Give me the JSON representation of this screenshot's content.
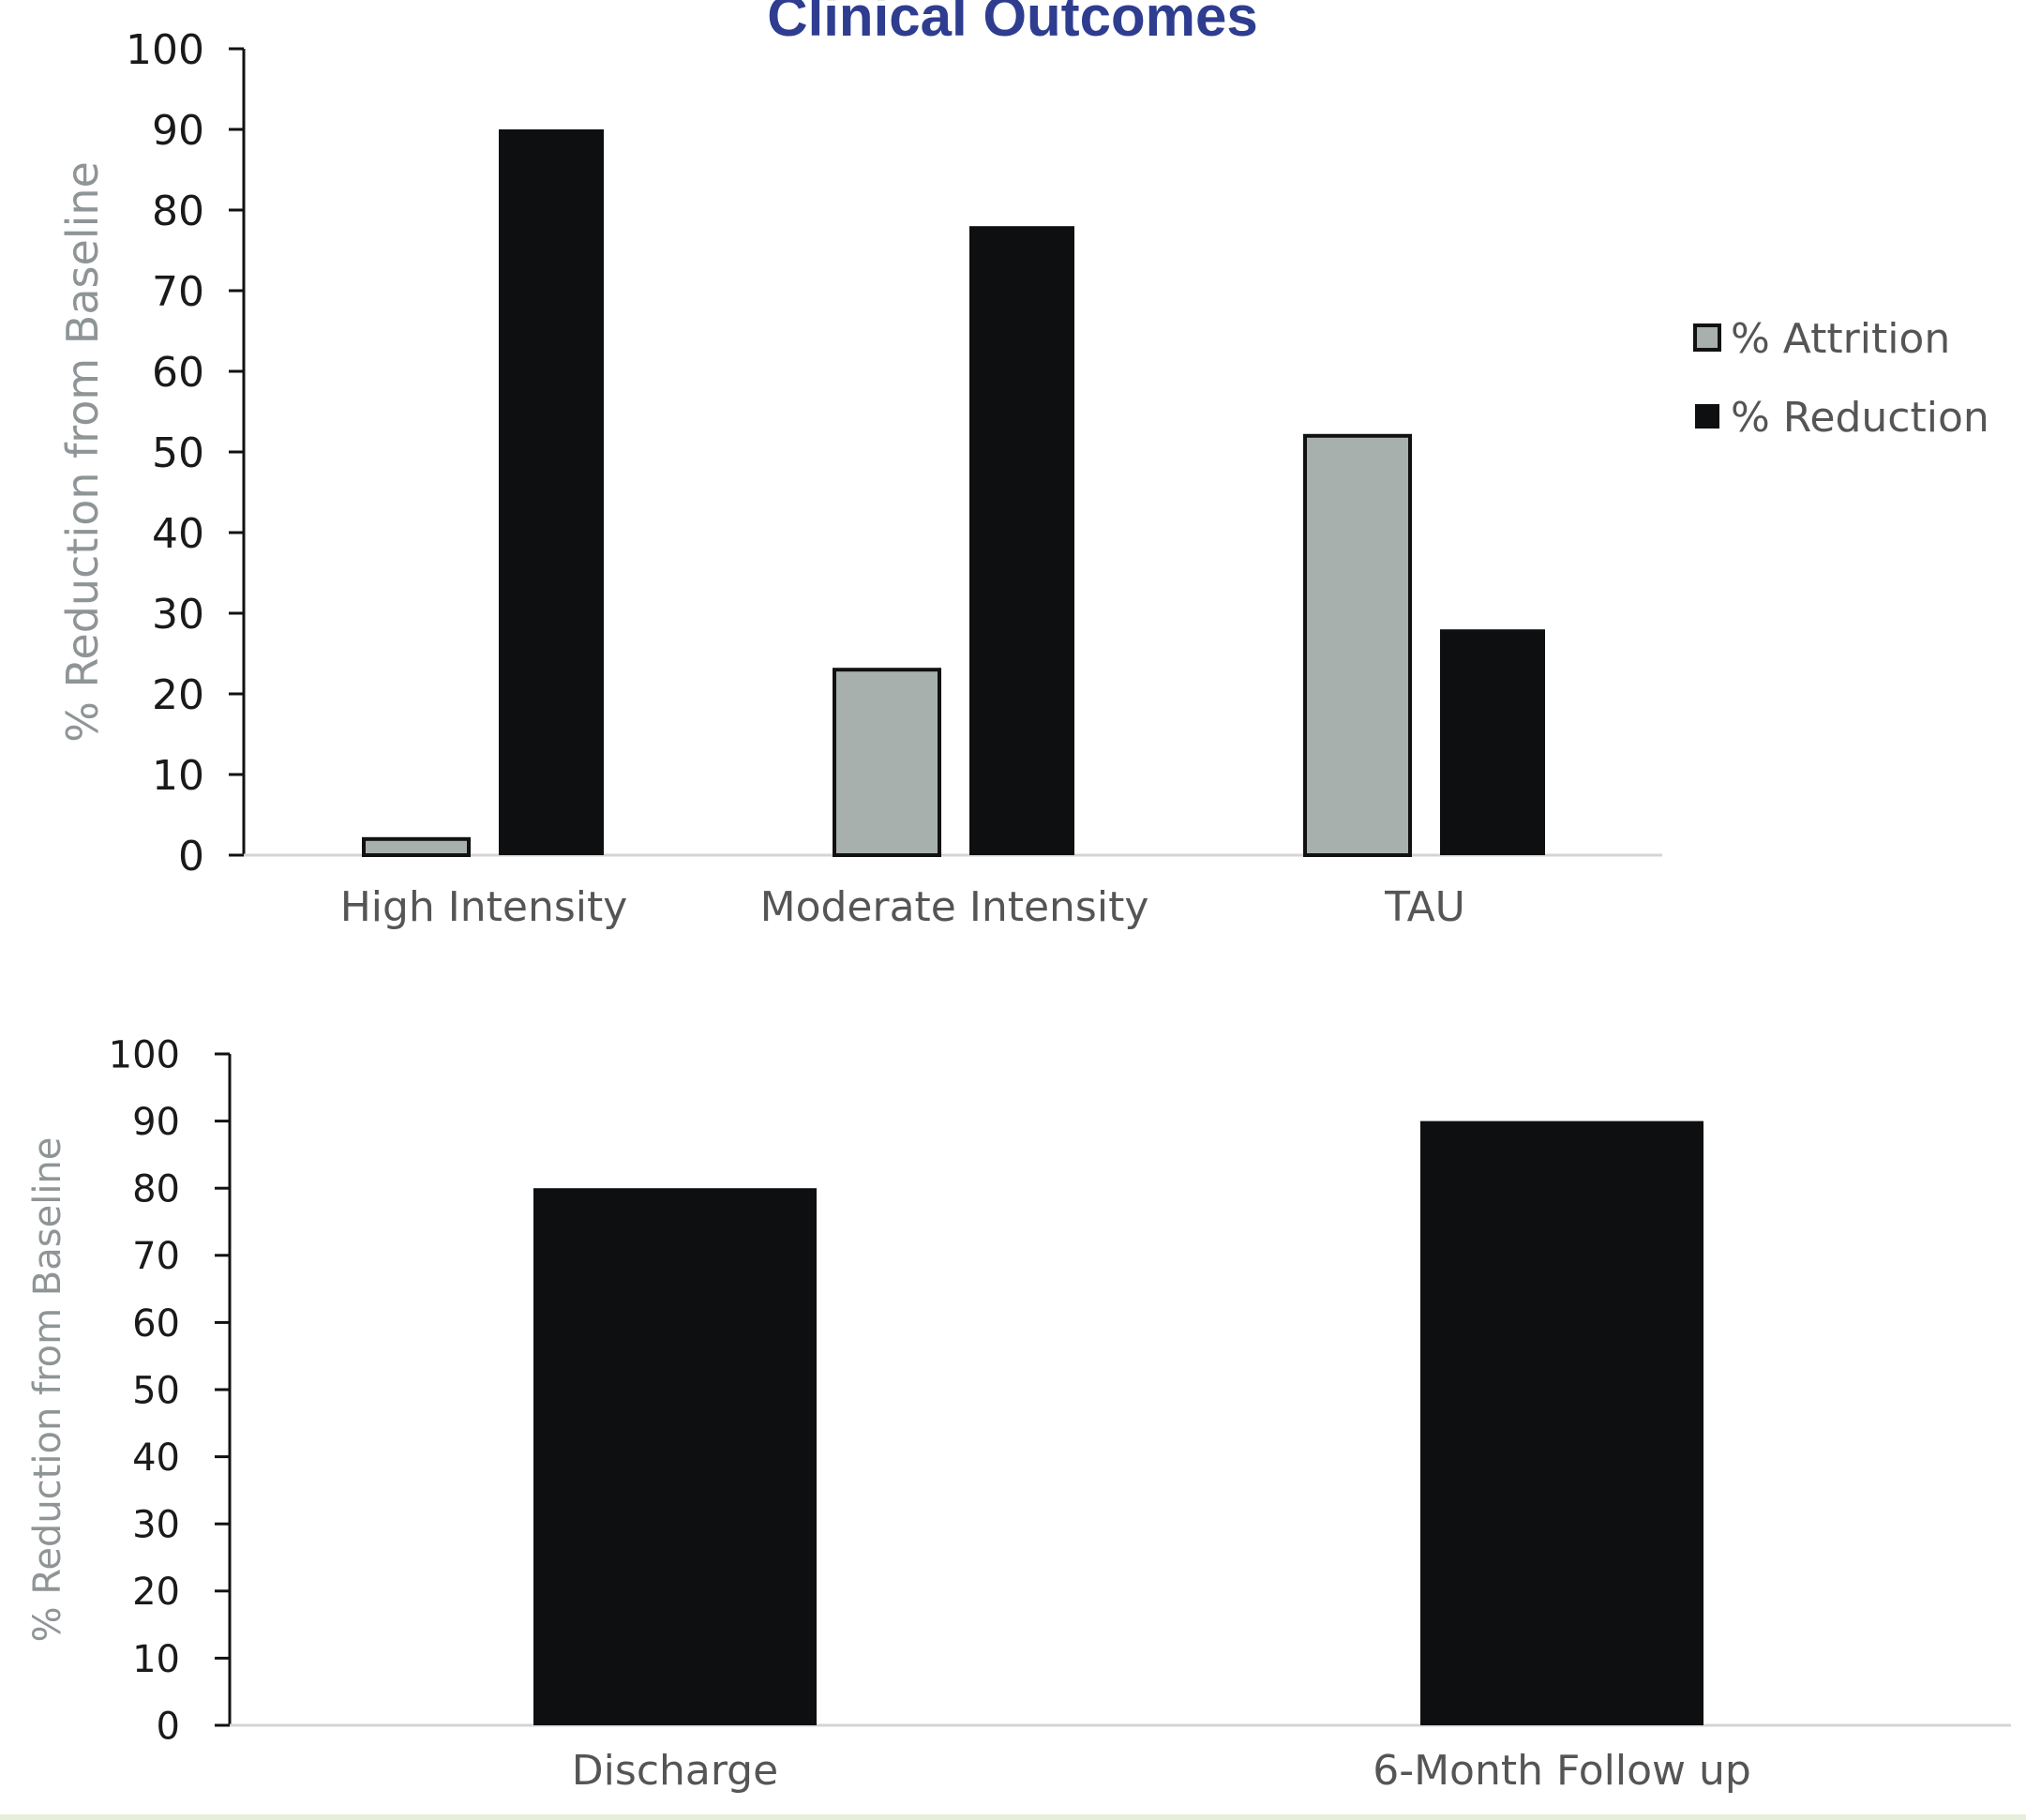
{
  "title": "Clinical Outcomes",
  "colors": {
    "title": "#2e3d8f",
    "attrition_fill": "#a7b0ad",
    "reduction_fill": "#0d0f10",
    "axis": "#111111",
    "baseline": "#d4d4d4",
    "tick_text": "#1a1a1a",
    "category_text": "#555555",
    "ylabel_text": "#8f9596",
    "legend_text": "#555555"
  },
  "chart_data": [
    {
      "type": "bar",
      "ylabel": "% Reduction from Baseline",
      "ylim": [
        0,
        100
      ],
      "yticks": [
        "0",
        "10",
        "20",
        "30",
        "40",
        "50",
        "60",
        "70",
        "80",
        "90",
        "100"
      ],
      "categories": [
        "High Intensity",
        "Moderate Intensity",
        "TAU"
      ],
      "series": [
        {
          "name": "% Attrition",
          "values": [
            2,
            23,
            52
          ]
        },
        {
          "name": "% Reduction",
          "values": [
            90,
            78,
            28
          ]
        }
      ],
      "legend": "right",
      "grid": false
    },
    {
      "type": "bar",
      "ylabel": "% Reduction from Baseline",
      "ylim": [
        0,
        100
      ],
      "yticks": [
        "0",
        "10",
        "20",
        "30",
        "40",
        "50",
        "60",
        "70",
        "80",
        "90",
        "100"
      ],
      "categories": [
        "Discharge",
        "6-Month Follow up"
      ],
      "series": [
        {
          "name": "% Reduction",
          "values": [
            80,
            90
          ]
        }
      ],
      "legend": "none",
      "grid": false
    }
  ]
}
